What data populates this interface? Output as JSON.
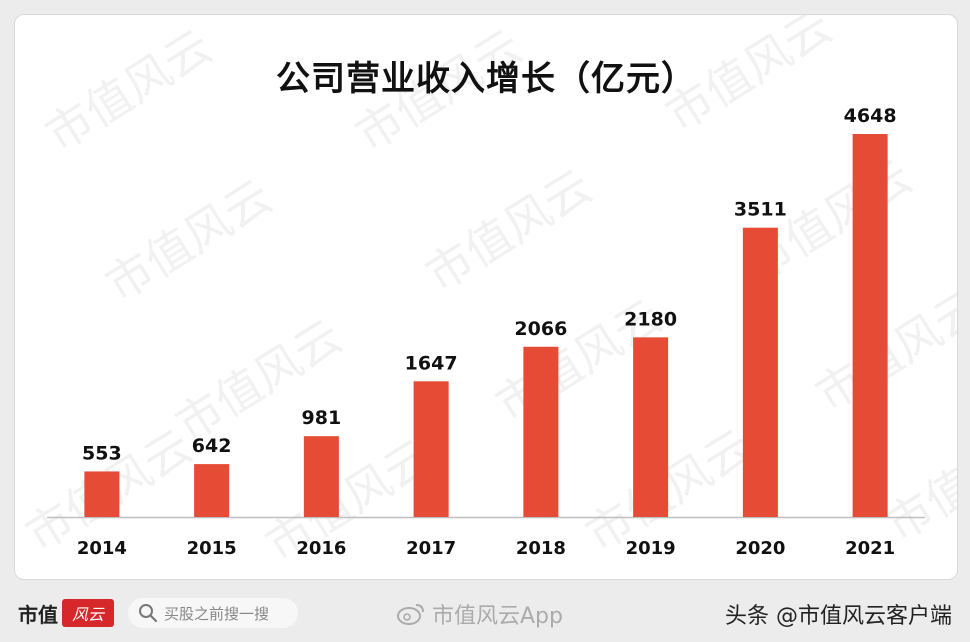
{
  "chart_data": {
    "type": "bar",
    "title": "公司营业收入增长（亿元）",
    "categories": [
      "2014",
      "2015",
      "2016",
      "2017",
      "2018",
      "2019",
      "2020",
      "2021"
    ],
    "values": [
      553,
      642,
      981,
      1647,
      2066,
      2180,
      3511,
      4648
    ],
    "value_labels": [
      "553",
      "642",
      "981",
      "1647",
      "2066",
      "2180",
      "3511",
      "4648"
    ],
    "ylim": [
      0,
      5000
    ],
    "xlabel": "",
    "ylabel": "",
    "grid": false,
    "legend": "none",
    "bar_color": "#e54b35"
  },
  "watermark": {
    "text": "市值风云"
  },
  "footer": {
    "brand": "市值",
    "brand_logo": "风云",
    "search_placeholder": "买股之前搜一搜",
    "app_name": "市值风云App",
    "credit": "头条 @市值风云客户端"
  }
}
